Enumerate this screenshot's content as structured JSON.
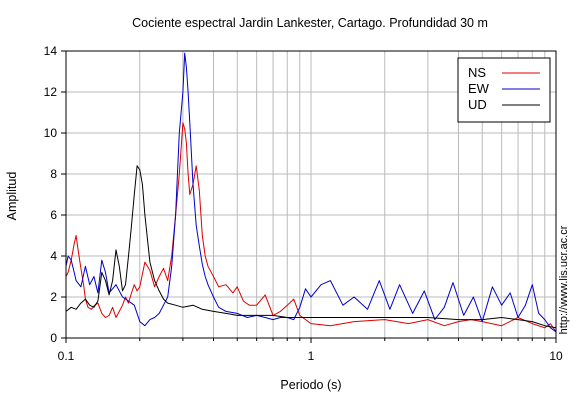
{
  "chart_data": {
    "type": "line",
    "title": "Cociente espectral Jardin Lankester, Cartago. Profundidad 30 m",
    "xlabel": "Periodo (s)",
    "ylabel": "Amplitud",
    "xscale": "log",
    "xlim": [
      0.1,
      10
    ],
    "ylim": [
      0,
      14
    ],
    "xticks": [
      0.1,
      1,
      10
    ],
    "xtick_labels": [
      "0.1",
      "1",
      "10"
    ],
    "yticks": [
      0,
      2,
      4,
      6,
      8,
      10,
      12,
      14
    ],
    "ytick_labels": [
      "0",
      "2",
      "4",
      "6",
      "8",
      "10",
      "12",
      "14"
    ],
    "grid": true,
    "legend_position": "top-right",
    "side_label": "http://www.lis.ucr.ac.cr",
    "series": [
      {
        "name": "NS",
        "color": "#dd0000",
        "x": [
          0.1,
          0.102,
          0.105,
          0.108,
          0.11,
          0.112,
          0.115,
          0.118,
          0.12,
          0.123,
          0.127,
          0.131,
          0.135,
          0.14,
          0.145,
          0.15,
          0.155,
          0.16,
          0.165,
          0.17,
          0.175,
          0.18,
          0.185,
          0.19,
          0.195,
          0.2,
          0.21,
          0.22,
          0.23,
          0.24,
          0.25,
          0.26,
          0.27,
          0.28,
          0.29,
          0.3,
          0.305,
          0.31,
          0.315,
          0.32,
          0.33,
          0.34,
          0.35,
          0.36,
          0.37,
          0.38,
          0.4,
          0.42,
          0.45,
          0.48,
          0.5,
          0.53,
          0.56,
          0.6,
          0.65,
          0.7,
          0.75,
          0.8,
          0.85,
          0.9,
          1,
          1.2,
          1.5,
          2,
          2.5,
          3,
          3.5,
          4,
          4.5,
          5,
          6,
          7,
          8,
          9,
          9.5,
          10
        ],
        "y": [
          3.0,
          3.2,
          3.8,
          4.6,
          5.0,
          4.3,
          3.4,
          2.6,
          1.9,
          1.5,
          1.4,
          1.6,
          1.7,
          1.2,
          1.0,
          1.1,
          1.5,
          1.0,
          1.3,
          1.6,
          2.0,
          1.7,
          2.2,
          2.6,
          2.3,
          2.5,
          3.7,
          3.3,
          2.5,
          3.0,
          3.4,
          2.8,
          4.0,
          6.0,
          8.0,
          10.5,
          10.2,
          9.5,
          8.0,
          7.0,
          7.5,
          8.4,
          7.2,
          5.0,
          4.0,
          3.5,
          3.0,
          2.5,
          2.6,
          2.2,
          2.5,
          1.8,
          1.6,
          1.6,
          2.1,
          1.1,
          1.3,
          1.6,
          1.9,
          1.1,
          0.7,
          0.6,
          0.8,
          0.9,
          0.7,
          0.9,
          0.6,
          0.8,
          0.9,
          0.8,
          0.6,
          1.0,
          0.7,
          0.5,
          0.7,
          0.3
        ]
      },
      {
        "name": "EW",
        "color": "#0000cc",
        "x": [
          0.1,
          0.102,
          0.105,
          0.108,
          0.11,
          0.115,
          0.12,
          0.125,
          0.13,
          0.135,
          0.14,
          0.145,
          0.15,
          0.16,
          0.17,
          0.18,
          0.19,
          0.2,
          0.21,
          0.22,
          0.23,
          0.24,
          0.25,
          0.26,
          0.27,
          0.28,
          0.29,
          0.3,
          0.305,
          0.31,
          0.315,
          0.32,
          0.325,
          0.33,
          0.34,
          0.35,
          0.36,
          0.37,
          0.38,
          0.4,
          0.42,
          0.45,
          0.5,
          0.55,
          0.6,
          0.65,
          0.7,
          0.75,
          0.8,
          0.85,
          0.9,
          0.95,
          1,
          1.1,
          1.2,
          1.35,
          1.5,
          1.7,
          1.9,
          2.1,
          2.3,
          2.6,
          2.9,
          3.2,
          3.5,
          3.8,
          4.2,
          4.6,
          5,
          5.5,
          6,
          6.5,
          7,
          7.5,
          8,
          8.5,
          9,
          9.5,
          10
        ],
        "y": [
          3.5,
          4.0,
          3.8,
          3.2,
          2.8,
          2.5,
          3.5,
          2.6,
          3.0,
          2.2,
          3.8,
          3.2,
          2.2,
          2.6,
          2.0,
          1.8,
          1.6,
          0.8,
          0.6,
          0.9,
          1.0,
          1.2,
          1.6,
          2.0,
          3.5,
          6.0,
          10.0,
          12.0,
          13.9,
          13.2,
          12.0,
          10.5,
          9.0,
          7.5,
          5.5,
          4.5,
          3.6,
          3.0,
          2.6,
          2.0,
          1.5,
          1.3,
          1.2,
          1.0,
          1.1,
          1.0,
          0.9,
          1.0,
          1.0,
          0.9,
          1.5,
          2.4,
          2.0,
          2.6,
          2.8,
          1.6,
          2.0,
          1.4,
          2.8,
          1.4,
          2.6,
          1.2,
          2.3,
          0.9,
          1.5,
          2.7,
          1.1,
          2.0,
          0.8,
          2.5,
          1.6,
          2.2,
          1.0,
          1.6,
          2.6,
          1.2,
          0.9,
          0.5,
          0.3
        ]
      },
      {
        "name": "UD",
        "color": "#000000",
        "x": [
          0.1,
          0.105,
          0.11,
          0.115,
          0.12,
          0.125,
          0.13,
          0.135,
          0.14,
          0.145,
          0.15,
          0.155,
          0.16,
          0.165,
          0.17,
          0.175,
          0.18,
          0.185,
          0.19,
          0.195,
          0.2,
          0.205,
          0.21,
          0.22,
          0.23,
          0.24,
          0.25,
          0.26,
          0.28,
          0.3,
          0.33,
          0.36,
          0.4,
          0.45,
          0.5,
          0.6,
          0.7,
          0.8,
          0.9,
          1,
          1.5,
          2,
          3,
          4,
          5,
          6,
          7,
          8,
          9,
          10
        ],
        "y": [
          1.3,
          1.5,
          1.4,
          1.7,
          1.9,
          1.6,
          1.5,
          1.8,
          3.2,
          2.8,
          2.1,
          2.8,
          4.3,
          3.5,
          2.3,
          2.6,
          4.0,
          5.5,
          7.0,
          8.4,
          8.2,
          7.5,
          6.0,
          3.7,
          2.8,
          2.3,
          1.9,
          1.7,
          1.6,
          1.5,
          1.6,
          1.4,
          1.3,
          1.2,
          1.1,
          1.1,
          1.1,
          1.0,
          1.0,
          1.0,
          1.0,
          1.0,
          1.0,
          0.9,
          0.9,
          1.0,
          0.9,
          0.8,
          0.6,
          0.5
        ]
      }
    ]
  }
}
